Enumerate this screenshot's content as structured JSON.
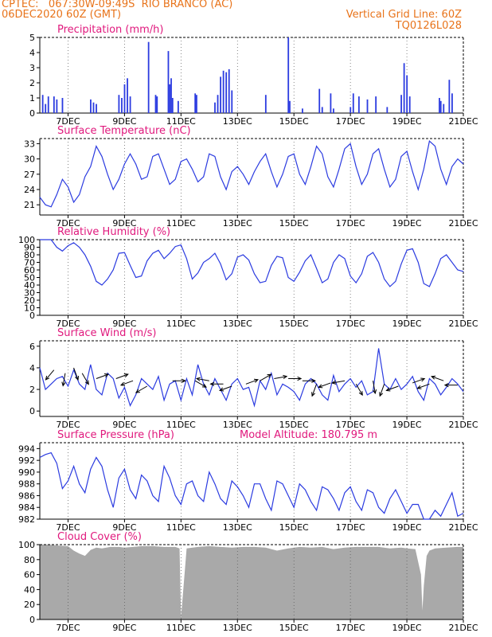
{
  "header": {
    "line1": "CPTEC:   067:30W-09:49S  RIO BRANCO (AC)",
    "line2": "06DEC2020 60Z (GMT)",
    "grid_note": "Vertical Grid Line: 60Z",
    "code": "TQ0126L028"
  },
  "x_ticks": [
    "7DEC",
    "9DEC",
    "11DEC",
    "13DEC",
    "15DEC",
    "17DEC",
    "19DEC",
    "21DEC"
  ],
  "colors": {
    "series": "#2b3be0",
    "title": "#e0197d",
    "header": "#e8731a",
    "cloud": "#a9a9a9"
  },
  "chart_data": [
    {
      "id": "precip",
      "type": "bar",
      "title": "Precipitation (mm/h)",
      "xlabel": "",
      "ylabel": "",
      "x_range_days": [
        6,
        21
      ],
      "ylim": [
        0,
        5
      ],
      "yticks": [
        0,
        1,
        2,
        3,
        4,
        5
      ],
      "grid": "dotted vertical",
      "x": [
        6.1,
        6.2,
        6.3,
        6.5,
        6.6,
        6.8,
        7.8,
        7.9,
        8.0,
        8.8,
        8.9,
        9.0,
        9.1,
        9.2,
        9.85,
        10.1,
        10.15,
        10.55,
        10.6,
        10.65,
        10.7,
        10.9,
        11.5,
        11.55,
        12.2,
        12.3,
        12.4,
        12.5,
        12.6,
        12.7,
        12.8,
        14.0,
        14.8,
        14.85,
        15.3,
        15.9,
        16.0,
        16.3,
        16.4,
        17.0,
        17.1,
        17.3,
        17.6,
        17.9,
        18.3,
        18.8,
        18.9,
        19.0,
        19.1,
        20.15,
        20.2,
        20.3,
        20.5,
        20.6
      ],
      "values": [
        1.2,
        0.6,
        1.1,
        1.1,
        0.9,
        1.0,
        0.9,
        0.7,
        0.6,
        1.2,
        1.0,
        1.9,
        2.3,
        1.1,
        4.7,
        1.2,
        1.1,
        4.1,
        1.9,
        2.3,
        1.0,
        0.8,
        1.3,
        1.2,
        0.7,
        1.2,
        2.4,
        2.8,
        2.7,
        2.9,
        1.5,
        1.2,
        5.0,
        0.8,
        0.3,
        1.6,
        0.4,
        1.3,
        0.3,
        0.4,
        1.3,
        1.1,
        0.9,
        1.1,
        0.4,
        1.2,
        3.3,
        2.5,
        1.1,
        1.0,
        0.8,
        0.6,
        2.2,
        1.3
      ]
    },
    {
      "id": "temp",
      "type": "line",
      "title": "Surface Temperature (nC)",
      "xlabel": "",
      "ylabel": "",
      "x_range_days": [
        6,
        21
      ],
      "ylim": [
        19,
        34
      ],
      "yticks": [
        21,
        24,
        27,
        30,
        33
      ],
      "grid": "dotted vertical",
      "x": [
        6.0,
        6.2,
        6.4,
        6.6,
        6.8,
        7.0,
        7.2,
        7.4,
        7.6,
        7.8,
        8.0,
        8.2,
        8.4,
        8.6,
        8.8,
        9.0,
        9.2,
        9.4,
        9.6,
        9.8,
        10.0,
        10.2,
        10.4,
        10.6,
        10.8,
        11.0,
        11.2,
        11.4,
        11.6,
        11.8,
        12.0,
        12.2,
        12.4,
        12.6,
        12.8,
        13.0,
        13.2,
        13.4,
        13.6,
        13.8,
        14.0,
        14.2,
        14.4,
        14.6,
        14.8,
        15.0,
        15.2,
        15.4,
        15.6,
        15.8,
        16.0,
        16.2,
        16.4,
        16.6,
        16.8,
        17.0,
        17.2,
        17.4,
        17.6,
        17.8,
        18.0,
        18.2,
        18.4,
        18.6,
        18.8,
        19.0,
        19.2,
        19.4,
        19.6,
        19.8,
        20.0,
        20.2,
        20.4,
        20.6,
        20.8,
        21.0
      ],
      "values": [
        22.5,
        21.0,
        20.6,
        23.0,
        26.0,
        24.5,
        21.5,
        23.0,
        26.5,
        28.5,
        32.5,
        30.5,
        27.0,
        24.0,
        26.0,
        29.0,
        31.0,
        29.0,
        26.0,
        26.5,
        30.5,
        31.0,
        28.0,
        25.0,
        26.0,
        29.5,
        30.0,
        28.0,
        25.5,
        26.5,
        31.0,
        30.5,
        26.5,
        24.0,
        27.5,
        28.5,
        27.0,
        25.0,
        27.5,
        29.5,
        31.0,
        27.5,
        24.5,
        27.0,
        30.5,
        31.0,
        27.0,
        25.0,
        28.5,
        32.5,
        31.0,
        26.5,
        24.5,
        28.0,
        32.0,
        33.0,
        28.5,
        25.0,
        27.0,
        31.0,
        32.0,
        28.0,
        24.5,
        26.0,
        30.5,
        31.5,
        27.5,
        24.0,
        28.0,
        33.5,
        32.5,
        28.0,
        25.0,
        28.5,
        30.0,
        29.0
      ]
    },
    {
      "id": "rh",
      "type": "line",
      "title": "Relative Humidity (%)",
      "xlabel": "",
      "ylabel": "",
      "x_range_days": [
        6,
        21
      ],
      "ylim": [
        0,
        100
      ],
      "yticks": [
        0,
        10,
        20,
        30,
        40,
        50,
        60,
        70,
        80,
        90,
        100
      ],
      "grid": "dotted vertical",
      "x": [
        6.0,
        6.2,
        6.4,
        6.6,
        6.8,
        7.0,
        7.2,
        7.4,
        7.6,
        7.8,
        8.0,
        8.2,
        8.4,
        8.6,
        8.8,
        9.0,
        9.2,
        9.4,
        9.6,
        9.8,
        10.0,
        10.2,
        10.4,
        10.6,
        10.8,
        11.0,
        11.2,
        11.4,
        11.6,
        11.8,
        12.0,
        12.2,
        12.4,
        12.6,
        12.8,
        13.0,
        13.2,
        13.4,
        13.6,
        13.8,
        14.0,
        14.2,
        14.4,
        14.6,
        14.8,
        15.0,
        15.2,
        15.4,
        15.6,
        15.8,
        16.0,
        16.2,
        16.4,
        16.6,
        16.8,
        17.0,
        17.2,
        17.4,
        17.6,
        17.8,
        18.0,
        18.2,
        18.4,
        18.6,
        18.8,
        19.0,
        19.2,
        19.4,
        19.6,
        19.8,
        20.0,
        20.2,
        20.4,
        20.6,
        20.8,
        21.0
      ],
      "values": [
        100,
        100,
        100,
        90,
        85,
        92,
        96,
        90,
        80,
        65,
        45,
        40,
        48,
        60,
        82,
        83,
        66,
        50,
        52,
        72,
        82,
        86,
        75,
        82,
        91,
        93,
        75,
        48,
        56,
        70,
        75,
        82,
        68,
        47,
        55,
        77,
        80,
        73,
        55,
        43,
        45,
        66,
        78,
        76,
        50,
        45,
        57,
        72,
        80,
        62,
        43,
        48,
        70,
        80,
        75,
        52,
        43,
        55,
        78,
        83,
        70,
        48,
        38,
        45,
        68,
        86,
        88,
        70,
        42,
        38,
        55,
        75,
        80,
        70,
        60,
        58
      ]
    },
    {
      "id": "wind",
      "type": "line",
      "title": "Surface Wind (m/s)",
      "xlabel": "",
      "ylabel": "",
      "x_range_days": [
        6,
        21
      ],
      "ylim": [
        -0.5,
        6.5
      ],
      "yticks": [
        0,
        2,
        4,
        6
      ],
      "grid": "dotted vertical",
      "x": [
        6.0,
        6.2,
        6.4,
        6.6,
        6.8,
        7.0,
        7.2,
        7.4,
        7.6,
        7.8,
        8.0,
        8.2,
        8.4,
        8.6,
        8.8,
        9.0,
        9.2,
        9.4,
        9.6,
        9.8,
        10.0,
        10.2,
        10.4,
        10.6,
        10.8,
        11.0,
        11.2,
        11.4,
        11.6,
        11.8,
        12.0,
        12.2,
        12.4,
        12.6,
        12.8,
        13.0,
        13.2,
        13.4,
        13.6,
        13.8,
        14.0,
        14.2,
        14.4,
        14.6,
        14.8,
        15.0,
        15.2,
        15.4,
        15.6,
        15.8,
        16.0,
        16.2,
        16.4,
        16.6,
        16.8,
        17.0,
        17.2,
        17.4,
        17.6,
        17.8,
        18.0,
        18.2,
        18.4,
        18.6,
        18.8,
        19.0,
        19.2,
        19.4,
        19.6,
        19.8,
        20.0,
        20.2,
        20.4,
        20.6,
        20.8,
        21.0
      ],
      "values": [
        4.0,
        2.0,
        2.5,
        3.0,
        3.2,
        2.3,
        3.8,
        2.5,
        2.0,
        4.3,
        2.0,
        1.5,
        3.5,
        3.0,
        1.2,
        2.2,
        0.5,
        1.5,
        3.0,
        2.5,
        2.0,
        3.2,
        1.0,
        2.5,
        2.8,
        1.0,
        3.0,
        1.5,
        4.3,
        2.5,
        1.5,
        3.0,
        2.0,
        1.0,
        2.5,
        3.0,
        2.0,
        2.2,
        0.5,
        2.8,
        2.0,
        3.5,
        1.5,
        2.5,
        2.2,
        1.8,
        1.0,
        2.5,
        3.0,
        2.5,
        1.5,
        1.0,
        3.3,
        1.8,
        2.5,
        3.0,
        2.2,
        2.8,
        1.5,
        1.8,
        5.8,
        2.5,
        2.0,
        3.0,
        2.0,
        2.5,
        3.2,
        1.8,
        1.0,
        3.0,
        2.5,
        1.5,
        2.2,
        3.0,
        2.5,
        1.8
      ],
      "vectors": [
        {
          "x": 6.5,
          "y": 3.8,
          "angle": 230
        },
        {
          "x": 6.9,
          "y": 3.5,
          "angle": 260
        },
        {
          "x": 7.2,
          "y": 4.0,
          "angle": 290
        },
        {
          "x": 7.5,
          "y": 3.5,
          "angle": 300
        },
        {
          "x": 8.0,
          "y": 3.0,
          "angle": 20
        },
        {
          "x": 8.7,
          "y": 3.0,
          "angle": 20
        },
        {
          "x": 9.3,
          "y": 2.8,
          "angle": 200
        },
        {
          "x": 9.8,
          "y": 2.3,
          "angle": 210
        },
        {
          "x": 10.7,
          "y": 2.8,
          "angle": 0
        },
        {
          "x": 11.5,
          "y": 2.8,
          "angle": 330
        },
        {
          "x": 12.0,
          "y": 2.8,
          "angle": 170
        },
        {
          "x": 12.5,
          "y": 2.5,
          "angle": 180
        },
        {
          "x": 12.8,
          "y": 2.3,
          "angle": 200
        },
        {
          "x": 13.3,
          "y": 2.5,
          "angle": 20
        },
        {
          "x": 13.8,
          "y": 2.8,
          "angle": 30
        },
        {
          "x": 14.3,
          "y": 3.0,
          "angle": 10
        },
        {
          "x": 14.8,
          "y": 3.0,
          "angle": 0
        },
        {
          "x": 15.3,
          "y": 2.8,
          "angle": 0
        },
        {
          "x": 15.8,
          "y": 2.5,
          "angle": 250
        },
        {
          "x": 16.3,
          "y": 2.6,
          "angle": 200
        },
        {
          "x": 16.8,
          "y": 2.8,
          "angle": 190
        },
        {
          "x": 17.2,
          "y": 2.5,
          "angle": 300
        },
        {
          "x": 17.8,
          "y": 2.8,
          "angle": 280
        },
        {
          "x": 18.2,
          "y": 2.5,
          "angle": 250
        },
        {
          "x": 18.7,
          "y": 2.3,
          "angle": 200
        },
        {
          "x": 19.2,
          "y": 2.6,
          "angle": 20
        },
        {
          "x": 19.8,
          "y": 2.5,
          "angle": 200
        },
        {
          "x": 20.3,
          "y": 2.8,
          "angle": 160
        },
        {
          "x": 20.8,
          "y": 2.4,
          "angle": 180
        }
      ]
    },
    {
      "id": "pres",
      "type": "line",
      "title": "Surface Pressure (hPa)",
      "subtitle": "Model Altitude: 180.795 m",
      "xlabel": "",
      "ylabel": "",
      "x_range_days": [
        6,
        21
      ],
      "ylim": [
        982,
        995
      ],
      "yticks": [
        982,
        984,
        986,
        988,
        990,
        992,
        994
      ],
      "grid": "dotted vertical",
      "x": [
        6.0,
        6.2,
        6.4,
        6.6,
        6.8,
        7.0,
        7.2,
        7.4,
        7.6,
        7.8,
        8.0,
        8.2,
        8.4,
        8.6,
        8.8,
        9.0,
        9.2,
        9.4,
        9.6,
        9.8,
        10.0,
        10.2,
        10.4,
        10.6,
        10.8,
        11.0,
        11.2,
        11.4,
        11.6,
        11.8,
        12.0,
        12.2,
        12.4,
        12.6,
        12.8,
        13.0,
        13.2,
        13.4,
        13.6,
        13.8,
        14.0,
        14.2,
        14.4,
        14.6,
        14.8,
        15.0,
        15.2,
        15.4,
        15.6,
        15.8,
        16.0,
        16.2,
        16.4,
        16.6,
        16.8,
        17.0,
        17.2,
        17.4,
        17.6,
        17.8,
        18.0,
        18.2,
        18.4,
        18.6,
        18.8,
        19.0,
        19.2,
        19.4,
        19.6,
        19.8,
        20.0,
        20.2,
        20.4,
        20.6,
        20.8,
        21.0
      ],
      "values": [
        992.5,
        993.0,
        993.3,
        991.5,
        987.2,
        988.5,
        991.0,
        988.0,
        986.5,
        990.5,
        992.5,
        991.0,
        987.0,
        984.0,
        989.0,
        990.5,
        987.0,
        985.5,
        989.5,
        988.5,
        986.0,
        985.0,
        991.0,
        989.0,
        986.0,
        984.5,
        988.0,
        988.5,
        986.0,
        985.0,
        990.0,
        988.0,
        985.5,
        984.5,
        988.5,
        987.5,
        986.0,
        984.0,
        988.0,
        988.0,
        985.5,
        983.5,
        988.5,
        988.0,
        986.0,
        984.0,
        988.0,
        987.0,
        985.0,
        983.5,
        987.5,
        987.0,
        985.5,
        983.5,
        986.5,
        987.5,
        985.0,
        983.5,
        987.0,
        986.5,
        984.0,
        983.0,
        985.5,
        987.0,
        985.0,
        983.0,
        984.5,
        984.5,
        982.0,
        982.0,
        983.5,
        982.5,
        984.5,
        986.5,
        982.5,
        983.0
      ]
    },
    {
      "id": "cloud",
      "type": "area",
      "title": "Cloud Cover (%)",
      "xlabel": "",
      "ylabel": "",
      "x_range_days": [
        6,
        21
      ],
      "ylim": [
        0,
        100
      ],
      "yticks": [
        0,
        20,
        40,
        60,
        80,
        100
      ],
      "grid": "dotted vertical",
      "x": [
        6.0,
        6.3,
        6.6,
        7.0,
        7.2,
        7.4,
        7.6,
        7.8,
        8.0,
        8.2,
        8.5,
        8.8,
        9.0,
        9.3,
        9.6,
        10.0,
        10.4,
        10.8,
        10.95,
        11.0,
        11.2,
        11.6,
        12.0,
        12.4,
        12.8,
        13.2,
        13.6,
        14.0,
        14.4,
        14.8,
        15.2,
        15.6,
        16.0,
        16.4,
        16.8,
        17.2,
        17.6,
        18.0,
        18.4,
        18.8,
        19.0,
        19.3,
        19.5,
        19.55,
        19.6,
        19.7,
        19.8,
        20.0,
        20.4,
        20.8,
        21.0
      ],
      "values": [
        100,
        100,
        99,
        98,
        92,
        88,
        85,
        93,
        96,
        95,
        97,
        97,
        96,
        97,
        98,
        98,
        97,
        97,
        95,
        2,
        95,
        97,
        98,
        97,
        96,
        97,
        97,
        96,
        92,
        95,
        97,
        96,
        97,
        94,
        96,
        97,
        97,
        97,
        95,
        96,
        95,
        94,
        60,
        12,
        45,
        85,
        92,
        95,
        96,
        97,
        97
      ]
    }
  ]
}
